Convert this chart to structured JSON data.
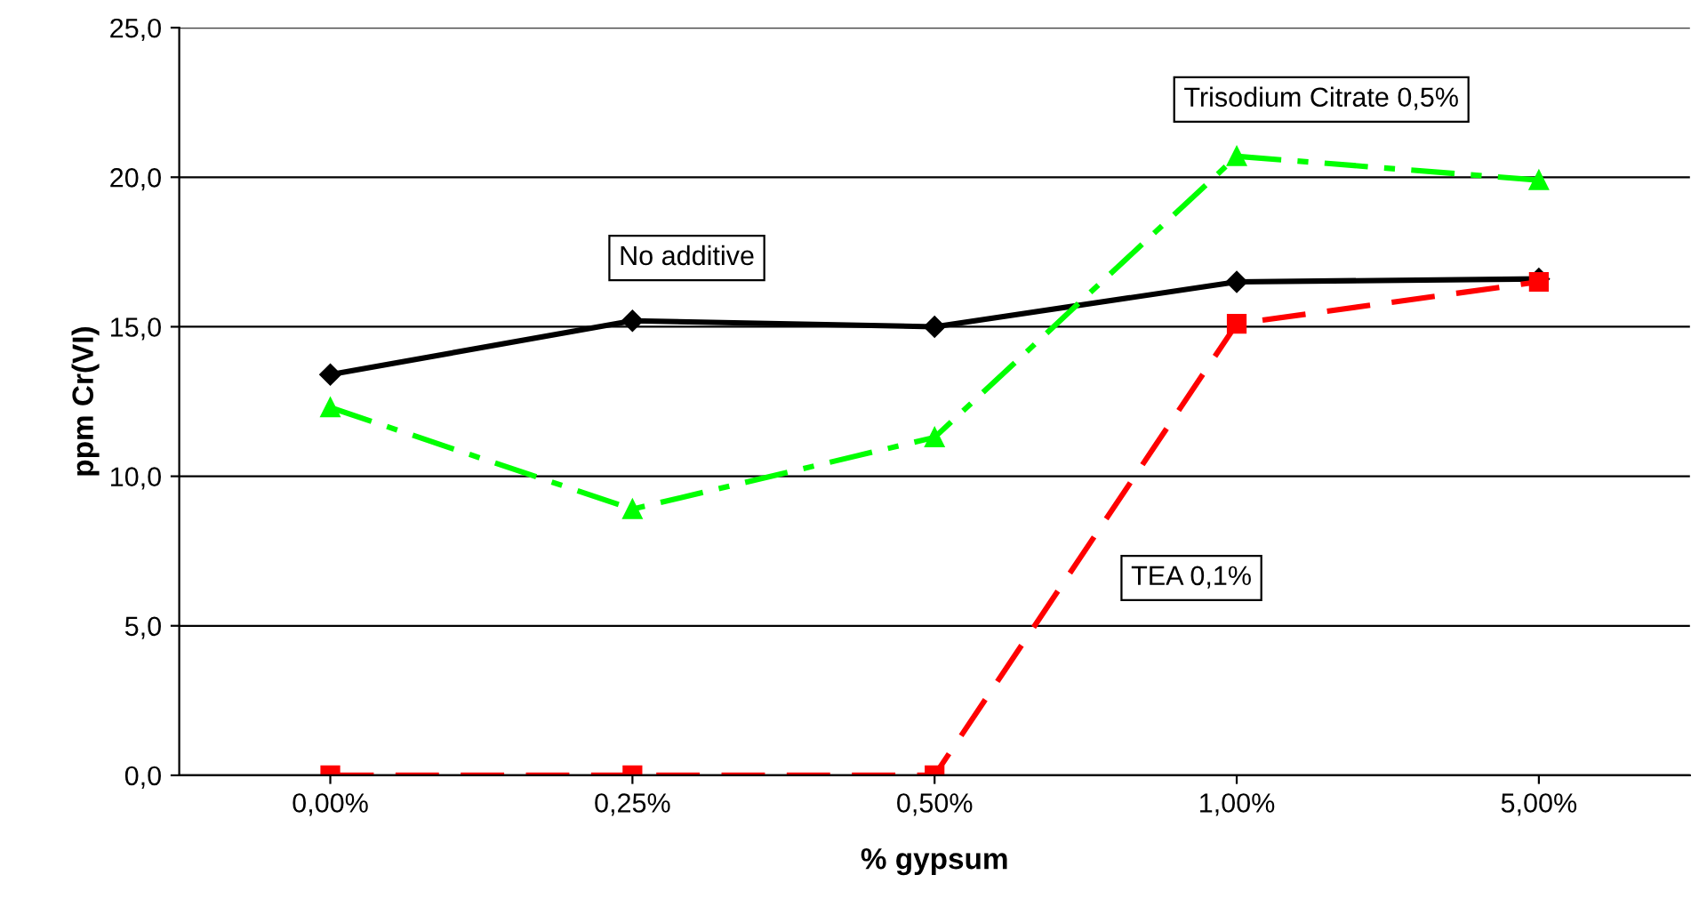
{
  "chart_data": {
    "type": "line",
    "xlabel": "% gypsum",
    "ylabel": "ppm Cr(VI)",
    "categories": [
      "0,00%",
      "0,25%",
      "0,50%",
      "1,00%",
      "5,00%"
    ],
    "ylim": [
      0,
      25
    ],
    "yticks": [
      {
        "value": 0,
        "label": "0,0"
      },
      {
        "value": 5,
        "label": "5,0"
      },
      {
        "value": 10,
        "label": "10,0"
      },
      {
        "value": 15,
        "label": "15,0"
      },
      {
        "value": 20,
        "label": "20,0"
      },
      {
        "value": 25,
        "label": "25,0"
      }
    ],
    "grid": "y",
    "legend": false,
    "series": [
      {
        "name": "No additive",
        "color": "#000000",
        "marker": "diamond",
        "line_style": "solid",
        "values": [
          13.4,
          15.2,
          15.0,
          16.5,
          16.6
        ]
      },
      {
        "name": "TEA 0,1%",
        "color": "#ff0000",
        "marker": "square",
        "line_style": "dashed",
        "values": [
          0,
          0,
          0,
          15.1,
          16.5
        ]
      },
      {
        "name": "Trisodium Citrate 0,5%",
        "color": "#00ff00",
        "marker": "triangle",
        "line_style": "dashdot",
        "values": [
          12.3,
          8.9,
          11.3,
          20.7,
          19.9
        ]
      }
    ]
  }
}
